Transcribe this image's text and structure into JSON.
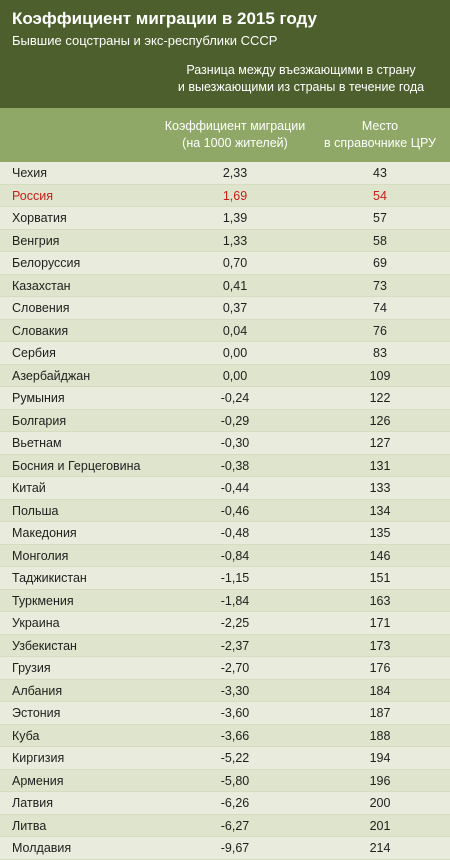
{
  "header": {
    "title": "Коэффициент миграции в 2015 году",
    "subtitle": "Бывшие соцстраны и экс-республики СССР",
    "desc_line1": "Разница между въезжающими в страну",
    "desc_line2": "и выезжающими из страны в течение года"
  },
  "columns": {
    "coef_line1": "Коэффициент миграции",
    "coef_line2": "(на 1000 жителей)",
    "rank_line1": "Место",
    "rank_line2": "в справочнике ЦРУ"
  },
  "colors": {
    "header": "#4d5f2c",
    "colhead": "#8fa867",
    "highlight": "#c8201b"
  },
  "chart_data": {
    "type": "table",
    "title": "Коэффициент миграции в 2015 году",
    "subtitle": "Бывшие соцстраны и экс-республики СССР",
    "columns": [
      "",
      "Коэффициент миграции (на 1000 жителей)",
      "Место в справочнике ЦРУ"
    ],
    "rows": [
      {
        "country": "Чехия",
        "coef": "2,33",
        "rank": "43"
      },
      {
        "country": "Россия",
        "coef": "1,69",
        "rank": "54",
        "highlight": true
      },
      {
        "country": "Хорватия",
        "coef": "1,39",
        "rank": "57"
      },
      {
        "country": "Венгрия",
        "coef": "1,33",
        "rank": "58"
      },
      {
        "country": "Белоруссия",
        "coef": "0,70",
        "rank": "69"
      },
      {
        "country": "Казахстан",
        "coef": "0,41",
        "rank": "73"
      },
      {
        "country": "Словения",
        "coef": "0,37",
        "rank": "74"
      },
      {
        "country": "Словакия",
        "coef": "0,04",
        "rank": "76"
      },
      {
        "country": "Сербия",
        "coef": "0,00",
        "rank": "83"
      },
      {
        "country": "Азербайджан",
        "coef": "0,00",
        "rank": "109"
      },
      {
        "country": "Румыния",
        "coef": "-0,24",
        "rank": "122"
      },
      {
        "country": "Болгария",
        "coef": "-0,29",
        "rank": "126"
      },
      {
        "country": "Вьетнам",
        "coef": "-0,30",
        "rank": "127"
      },
      {
        "country": "Босния и Герцеговина",
        "coef": "-0,38",
        "rank": "131"
      },
      {
        "country": "Китай",
        "coef": "-0,44",
        "rank": "133"
      },
      {
        "country": "Польша",
        "coef": "-0,46",
        "rank": "134"
      },
      {
        "country": "Македония",
        "coef": "-0,48",
        "rank": "135"
      },
      {
        "country": "Монголия",
        "coef": "-0,84",
        "rank": "146"
      },
      {
        "country": "Таджикистан",
        "coef": "-1,15",
        "rank": "151"
      },
      {
        "country": "Туркмения",
        "coef": "-1,84",
        "rank": "163"
      },
      {
        "country": "Украина",
        "coef": "-2,25",
        "rank": "171"
      },
      {
        "country": "Узбекистан",
        "coef": "-2,37",
        "rank": "173"
      },
      {
        "country": "Грузия",
        "coef": "-2,70",
        "rank": "176"
      },
      {
        "country": "Албания",
        "coef": "-3,30",
        "rank": "184"
      },
      {
        "country": "Эстония",
        "coef": "-3,60",
        "rank": "187"
      },
      {
        "country": "Куба",
        "coef": "-3,66",
        "rank": "188"
      },
      {
        "country": "Киргизия",
        "coef": "-5,22",
        "rank": "194"
      },
      {
        "country": "Армения",
        "coef": "-5,80",
        "rank": "196"
      },
      {
        "country": "Латвия",
        "coef": "-6,26",
        "rank": "200"
      },
      {
        "country": "Литва",
        "coef": "-6,27",
        "rank": "201"
      },
      {
        "country": "Молдавия",
        "coef": "-9,67",
        "rank": "214"
      }
    ]
  }
}
